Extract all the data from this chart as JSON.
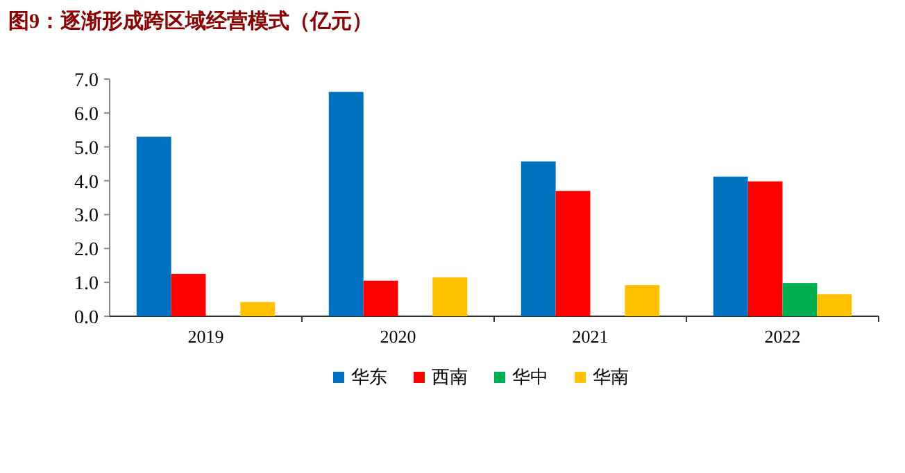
{
  "chart_data": {
    "type": "bar",
    "title": "图9：逐渐形成跨区域经营模式（亿元）",
    "categories": [
      "2019",
      "2020",
      "2021",
      "2022"
    ],
    "series": [
      {
        "name": "华东",
        "color": "#0070c0",
        "values": [
          5.3,
          6.62,
          4.57,
          4.12
        ]
      },
      {
        "name": "西南",
        "color": "#ff0000",
        "values": [
          1.25,
          1.05,
          3.7,
          3.98
        ]
      },
      {
        "name": "华中",
        "color": "#00b050",
        "values": [
          null,
          null,
          null,
          0.98
        ]
      },
      {
        "name": "华南",
        "color": "#ffc000",
        "values": [
          0.42,
          1.15,
          0.92,
          0.65
        ]
      }
    ],
    "ylim": [
      0,
      7
    ],
    "yticks": [
      {
        "value": 0,
        "label": "0.0"
      },
      {
        "value": 1,
        "label": "1.0"
      },
      {
        "value": 2,
        "label": "2.0"
      },
      {
        "value": 3,
        "label": "3.0"
      },
      {
        "value": 4,
        "label": "4.0"
      },
      {
        "value": 5,
        "label": "5.0"
      },
      {
        "value": 6,
        "label": "6.0"
      },
      {
        "value": 7,
        "label": "7.0"
      }
    ],
    "grid": false,
    "legend": "bottom"
  }
}
